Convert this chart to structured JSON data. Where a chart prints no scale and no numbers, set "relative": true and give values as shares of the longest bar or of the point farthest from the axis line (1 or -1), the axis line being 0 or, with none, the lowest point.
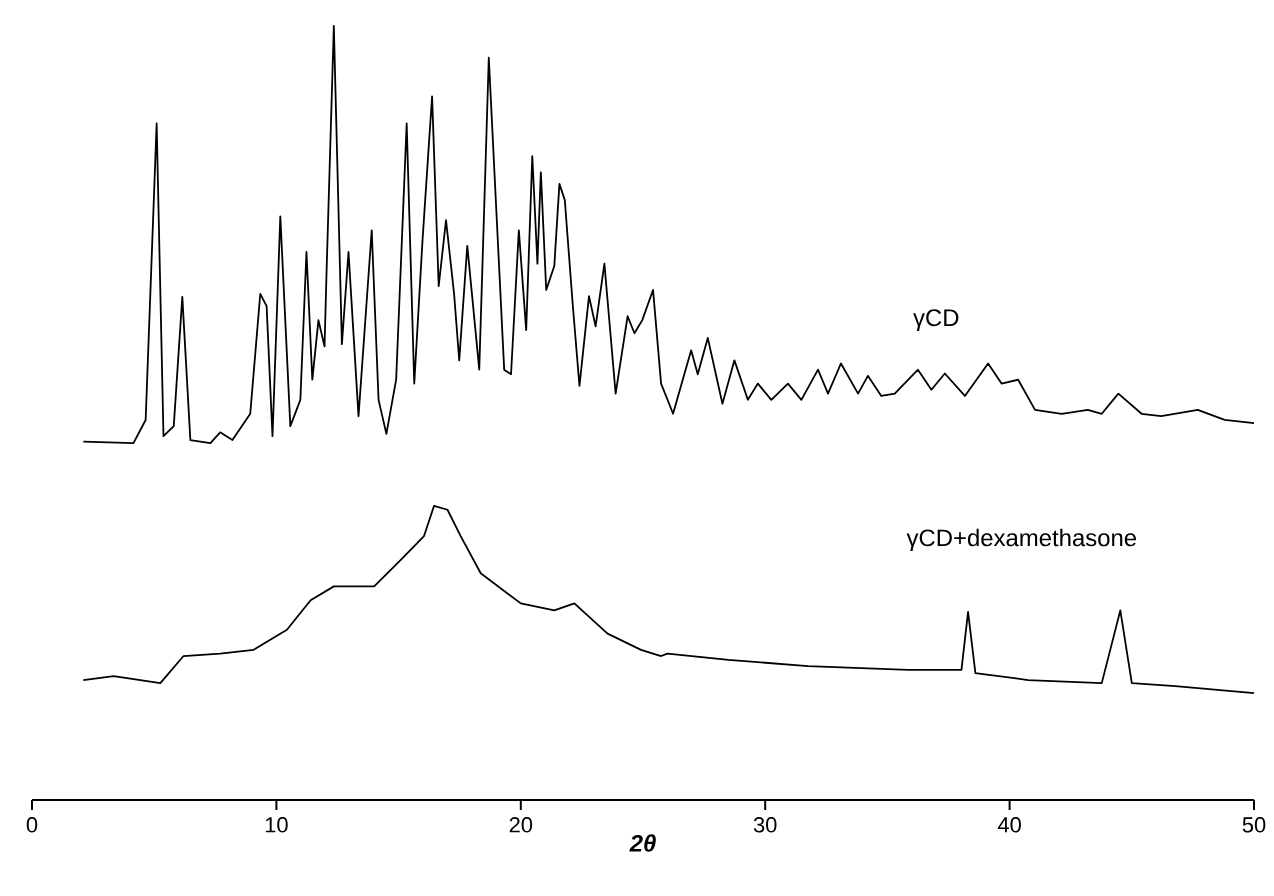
{
  "chart_data": {
    "type": "line",
    "relative": true,
    "xlim": [
      0,
      50
    ],
    "xticks": [
      0,
      10,
      20,
      30,
      40,
      50
    ],
    "xlabel": "2θ",
    "line_style": "solid",
    "series": [
      {
        "name": "γCD",
        "color": "#000000",
        "x": [
          2.1,
          4.15,
          4.65,
          5.1,
          5.38,
          5.8,
          6.15,
          6.48,
          7.3,
          7.7,
          8.2,
          8.93,
          9.34,
          9.6,
          9.84,
          10.16,
          10.57,
          10.98,
          11.23,
          11.47,
          11.72,
          11.97,
          12.05,
          12.35,
          12.68,
          12.95,
          13.36,
          13.9,
          14.18,
          14.5,
          14.9,
          15.33,
          15.64,
          15.98,
          16.37,
          16.64,
          16.94,
          17.27,
          17.48,
          17.81,
          18.3,
          18.69,
          19.32,
          19.6,
          19.92,
          20.22,
          20.47,
          20.68,
          20.82,
          21.04,
          21.37,
          21.58,
          21.8,
          22.13,
          22.4,
          22.79,
          23.06,
          23.42,
          23.88,
          24.37,
          24.65,
          24.97,
          25.41,
          25.74,
          26.23,
          26.97,
          27.24,
          27.65,
          28.25,
          28.74,
          29.29,
          29.7,
          30.25,
          30.93,
          31.48,
          32.16,
          32.57,
          33.1,
          33.8,
          34.2,
          34.75,
          35.3,
          36.25,
          36.8,
          37.35,
          38.17,
          39.12,
          39.67,
          40.35,
          41.04,
          42.13,
          43.2,
          43.77,
          44.45,
          45.4,
          46.2,
          47.7,
          48.8,
          50
        ],
        "values": [
          0.463,
          0.461,
          0.491,
          0.874,
          0.47,
          0.483,
          0.65,
          0.465,
          0.461,
          0.475,
          0.465,
          0.499,
          0.654,
          0.638,
          0.47,
          0.754,
          0.483,
          0.517,
          0.708,
          0.543,
          0.62,
          0.586,
          0.68,
          1.0,
          0.589,
          0.708,
          0.496,
          0.736,
          0.517,
          0.473,
          0.543,
          0.874,
          0.538,
          0.724,
          0.909,
          0.664,
          0.749,
          0.654,
          0.568,
          0.716,
          0.556,
          0.959,
          0.556,
          0.55,
          0.736,
          0.607,
          0.832,
          0.693,
          0.811,
          0.659,
          0.69,
          0.796,
          0.775,
          0.638,
          0.535,
          0.651,
          0.612,
          0.693,
          0.525,
          0.625,
          0.603,
          0.62,
          0.659,
          0.538,
          0.499,
          0.581,
          0.55,
          0.597,
          0.512,
          0.568,
          0.517,
          0.538,
          0.517,
          0.538,
          0.517,
          0.556,
          0.525,
          0.564,
          0.525,
          0.548,
          0.522,
          0.525,
          0.556,
          0.53,
          0.551,
          0.522,
          0.564,
          0.538,
          0.543,
          0.504,
          0.499,
          0.504,
          0.499,
          0.525,
          0.499,
          0.496,
          0.504,
          0.491,
          0.487
        ]
      },
      {
        "name": "γCD+dexamethasone",
        "color": "#000000",
        "x": [
          2.1,
          3.34,
          5.25,
          6.2,
          7.7,
          9.07,
          10.43,
          11.4,
          12.35,
          14.0,
          15.08,
          16.04,
          16.45,
          17.0,
          17.54,
          18.36,
          20.0,
          21.37,
          22.19,
          23.55,
          24.92,
          25.74,
          26.0,
          28.5,
          31.75,
          35.85,
          38.03,
          38.3,
          38.6,
          40.76,
          43.77,
          44.53,
          45.0,
          46.78,
          50
        ],
        "values": [
          0.155,
          0.16,
          0.151,
          0.186,
          0.189,
          0.194,
          0.22,
          0.258,
          0.276,
          0.276,
          0.31,
          0.341,
          0.38,
          0.375,
          0.341,
          0.293,
          0.254,
          0.245,
          0.254,
          0.215,
          0.194,
          0.186,
          0.189,
          0.181,
          0.173,
          0.168,
          0.168,
          0.243,
          0.164,
          0.155,
          0.151,
          0.245,
          0.151,
          0.147,
          0.138
        ]
      }
    ]
  }
}
